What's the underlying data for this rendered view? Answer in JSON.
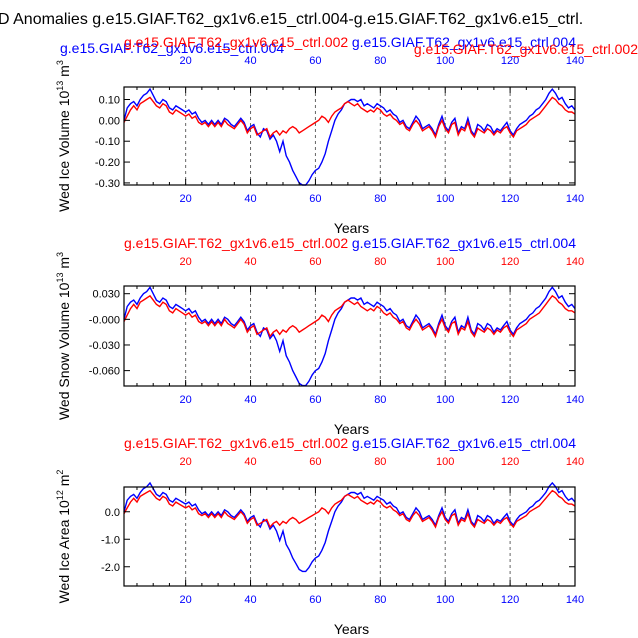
{
  "title": "D Anomalies g.e15.GIAF.T62_gx1v6.e15_ctrl.004-g.e15.GIAF.T62_gx1v6.e15_ctrl.",
  "colors": {
    "blue": "#0000ff",
    "red": "#ff0000",
    "axis": "#000000",
    "grid": "#666666"
  },
  "chart_data": [
    {
      "type": "line",
      "ylabel": "Wed Ice Volume 10",
      "ylabel_exp": "13",
      "ylabel_unit": " m",
      "ylabel_unit_exp": "3",
      "xlabel": "Years",
      "xlim": [
        1,
        140
      ],
      "ylim": [
        -0.31,
        0.16
      ],
      "yticks": [
        0.1,
        0.0,
        -0.1,
        -0.2,
        -0.3
      ],
      "ytick_labels": [
        "0.10",
        "0.00",
        "-0.10",
        "-0.20",
        "-0.30"
      ],
      "xticks": [
        20,
        40,
        60,
        80,
        100,
        120,
        140
      ],
      "xtick_labels": [
        "20",
        "40",
        "60",
        "80",
        "100",
        "120",
        "140"
      ],
      "top_axis_color": "blue",
      "bottom_axis_color": "blue",
      "top_label_color": "red",
      "top_label_row": "extra",
      "series_labels": [
        {
          "text": "g.e15.GIAF.T62_gx1v6.e15_ctrl.004",
          "color": "blue",
          "anchor": "left"
        },
        {
          "text": "g.e15.GIAF.T62_gx1v6.e15_ctrl.002",
          "color": "red",
          "anchor": "center"
        },
        {
          "text": "g.e15.GIAF.T62_gx1v6.e15_ctrl.004",
          "color": "blue",
          "anchor": "right"
        },
        {
          "text": "g.e15.GIAF.T62_gx1v6.e15_ctrl.002",
          "color": "red",
          "anchor": "farright"
        }
      ],
      "series": [
        {
          "name": "g.e15.GIAF.T62_gx1v6.e15_ctrl.004",
          "color": "blue",
          "values": []
        },
        {
          "name": "g.e15.GIAF.T62_gx1v6.e15_ctrl.002",
          "color": "red",
          "values": []
        }
      ],
      "scale": 0.1
    },
    {
      "type": "line",
      "ylabel": "Wed Snow Volume 10",
      "ylabel_exp": "13",
      "ylabel_unit": " m",
      "ylabel_unit_exp": "3",
      "xlabel": "Years",
      "xlim": [
        1,
        140
      ],
      "ylim": [
        -0.078,
        0.039
      ],
      "yticks": [
        0.03,
        0.0,
        -0.03,
        -0.06
      ],
      "ytick_labels": [
        "0.030",
        "-0.000",
        "-0.030",
        "-0.060"
      ],
      "xticks": [
        20,
        40,
        60,
        80,
        100,
        120,
        140
      ],
      "xtick_labels": [
        "20",
        "40",
        "60",
        "80",
        "100",
        "120",
        "140"
      ],
      "series_labels": [
        {
          "text": "g.e15.GIAF.T62_gx1v6.e15_ctrl.002",
          "color": "red",
          "anchor": "left"
        },
        {
          "text": "g.e15.GIAF.T62_gx1v6.e15_ctrl.004",
          "color": "blue",
          "anchor": "right"
        }
      ],
      "series": [
        {
          "name": "g.e15.GIAF.T62_gx1v6.e15_ctrl.004",
          "color": "blue",
          "values": []
        },
        {
          "name": "g.e15.GIAF.T62_gx1v6.e15_ctrl.002",
          "color": "red",
          "values": []
        }
      ],
      "scale": 0.025
    },
    {
      "type": "line",
      "ylabel": "Wed Ice Area 10",
      "ylabel_exp": "12",
      "ylabel_unit": " m",
      "ylabel_unit_exp": "2",
      "xlabel": "Years",
      "xlim": [
        1,
        140
      ],
      "ylim": [
        -2.7,
        0.9
      ],
      "yticks": [
        0.0,
        -1.0,
        -2.0
      ],
      "ytick_labels": [
        "0.0",
        "-1.0",
        "-2.0"
      ],
      "xticks": [
        20,
        40,
        60,
        80,
        100,
        120,
        140
      ],
      "xtick_labels": [
        "20",
        "40",
        "60",
        "80",
        "100",
        "120",
        "140"
      ],
      "series_labels": [
        {
          "text": "g.e15.GIAF.T62_gx1v6.e15_ctrl.002",
          "color": "red",
          "anchor": "left"
        },
        {
          "text": "g.e15.GIAF.T62_gx1v6.e15_ctrl.004",
          "color": "blue",
          "anchor": "right"
        }
      ],
      "series": [
        {
          "name": "g.e15.GIAF.T62_gx1v6.e15_ctrl.004",
          "color": "blue",
          "values": []
        },
        {
          "name": "g.e15.GIAF.T62_gx1v6.e15_ctrl.002",
          "color": "red",
          "values": []
        }
      ],
      "scale": 0.7
    }
  ],
  "base_blue": [
    0.0,
    0.06,
    0.08,
    0.09,
    0.07,
    0.1,
    0.12,
    0.13,
    0.15,
    0.12,
    0.09,
    0.08,
    0.1,
    0.09,
    0.06,
    0.05,
    0.07,
    0.06,
    0.05,
    0.04,
    0.05,
    0.03,
    0.04,
    0.01,
    -0.01,
    0.0,
    -0.02,
    0.0,
    -0.02,
    0.0,
    -0.02,
    0.01,
    0.0,
    -0.02,
    -0.03,
    -0.01,
    0.01,
    -0.01,
    -0.05,
    -0.03,
    -0.02,
    -0.06,
    -0.08,
    -0.04,
    -0.05,
    -0.09,
    -0.07,
    -0.1,
    -0.15,
    -0.1,
    -0.17,
    -0.2,
    -0.24,
    -0.27,
    -0.3,
    -0.31,
    -0.31,
    -0.29,
    -0.26,
    -0.24,
    -0.23,
    -0.2,
    -0.16,
    -0.1,
    -0.05,
    0.0,
    0.03,
    0.05,
    0.08,
    0.09,
    0.1,
    0.1,
    0.09,
    0.1,
    0.07,
    0.08,
    0.07,
    0.06,
    0.08,
    0.07,
    0.06,
    0.04,
    0.05,
    0.03,
    0.02,
    -0.01,
    0.0,
    -0.03,
    -0.04,
    -0.01,
    0.02,
    0.0,
    -0.04,
    -0.03,
    -0.02,
    -0.04,
    -0.07,
    -0.02,
    0.02,
    -0.03,
    -0.05,
    -0.01,
    0.01,
    -0.06,
    -0.03,
    -0.04,
    0.01,
    -0.05,
    -0.07,
    -0.02,
    -0.03,
    -0.05,
    -0.02,
    -0.03,
    -0.06,
    -0.04,
    -0.05,
    -0.03,
    -0.01,
    -0.05,
    -0.07,
    -0.04,
    -0.02,
    -0.01,
    0.0,
    0.02,
    0.03,
    0.05,
    0.06,
    0.08,
    0.1,
    0.13,
    0.15,
    0.13,
    0.1,
    0.11,
    0.08,
    0.06,
    0.07,
    0.05
  ],
  "base_red": [
    -0.01,
    0.02,
    0.05,
    0.07,
    0.05,
    0.08,
    0.09,
    0.1,
    0.11,
    0.09,
    0.07,
    0.06,
    0.08,
    0.07,
    0.04,
    0.03,
    0.05,
    0.04,
    0.03,
    0.02,
    0.03,
    0.01,
    0.02,
    -0.01,
    -0.02,
    -0.01,
    -0.03,
    -0.01,
    -0.03,
    -0.01,
    -0.03,
    0.0,
    -0.02,
    -0.03,
    -0.04,
    -0.02,
    0.0,
    -0.02,
    -0.06,
    -0.04,
    -0.03,
    -0.07,
    -0.06,
    -0.05,
    -0.04,
    -0.08,
    -0.06,
    -0.05,
    -0.07,
    -0.05,
    -0.06,
    -0.04,
    -0.03,
    -0.04,
    -0.06,
    -0.05,
    -0.04,
    -0.03,
    -0.02,
    -0.01,
    0.0,
    0.02,
    0.01,
    -0.01,
    0.02,
    0.04,
    0.05,
    0.06,
    0.08,
    0.09,
    0.08,
    0.07,
    0.08,
    0.06,
    0.05,
    0.04,
    0.05,
    0.04,
    0.06,
    0.05,
    0.03,
    0.02,
    0.03,
    0.01,
    0.0,
    -0.02,
    -0.01,
    -0.04,
    -0.05,
    -0.02,
    0.0,
    -0.02,
    -0.05,
    -0.04,
    -0.03,
    -0.05,
    -0.08,
    -0.03,
    0.0,
    -0.04,
    -0.06,
    -0.02,
    -0.01,
    -0.07,
    -0.04,
    -0.05,
    -0.01,
    -0.06,
    -0.08,
    -0.04,
    -0.05,
    -0.06,
    -0.04,
    -0.05,
    -0.07,
    -0.05,
    -0.06,
    -0.04,
    -0.03,
    -0.06,
    -0.08,
    -0.05,
    -0.04,
    -0.03,
    -0.02,
    0.0,
    0.01,
    0.02,
    0.03,
    0.05,
    0.07,
    0.09,
    0.11,
    0.1,
    0.08,
    0.07,
    0.05,
    0.04,
    0.04,
    0.03
  ]
}
